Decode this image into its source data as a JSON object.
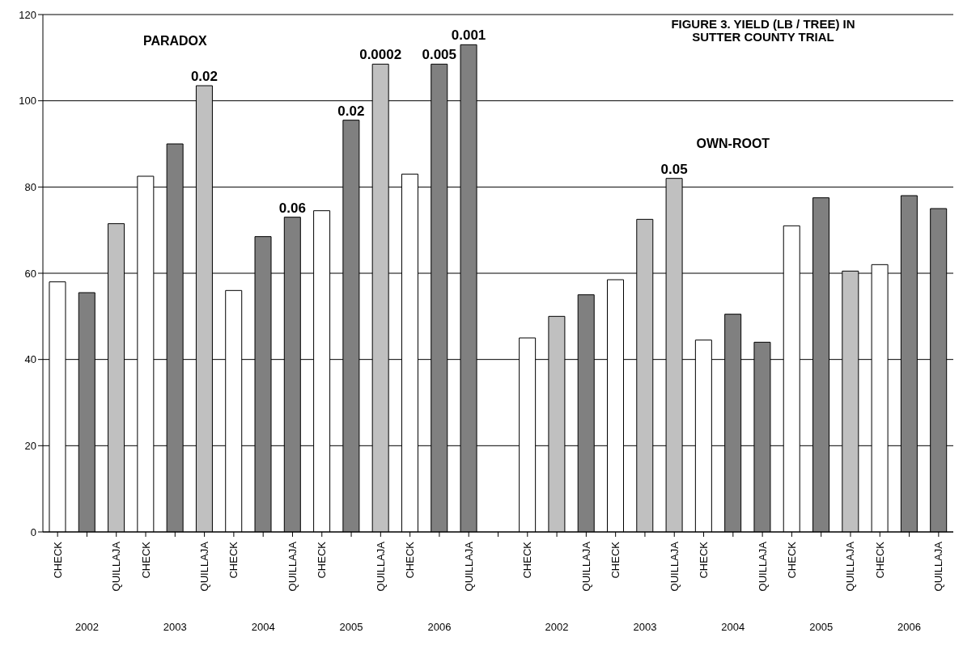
{
  "chart_data": {
    "type": "bar",
    "title": "FIGURE 3. YIELD (LB / TREE) IN SUTTER COUNTY TRIAL",
    "categories": [
      "CHECK",
      null,
      "QUILLAJA",
      "CHECK",
      null,
      "QUILLAJA",
      "CHECK",
      null,
      "QUILLAJA",
      "CHECK",
      null,
      "QUILLAJA",
      "CHECK",
      null,
      "QUILLAJA",
      null,
      "CHECK",
      null,
      "QUILLAJA",
      "CHECK",
      null,
      "QUILLAJA",
      "CHECK",
      null,
      "QUILLAJA",
      "CHECK",
      null,
      "QUILLAJA",
      "CHECK",
      null,
      "QUILLAJA"
    ],
    "values": [
      58,
      55.5,
      71.5,
      82.5,
      90,
      103.5,
      56,
      68.5,
      73,
      74.5,
      95.5,
      108.5,
      83,
      108.5,
      113,
      null,
      45,
      50,
      55,
      58.5,
      72.5,
      82,
      44.5,
      50.5,
      44,
      71,
      77.5,
      60.5,
      62,
      78,
      75
    ],
    "colors": [
      "#ffffff",
      "#808080",
      "#c0c0c0",
      "#ffffff",
      "#808080",
      "#c0c0c0",
      "#ffffff",
      "#808080",
      "#808080",
      "#ffffff",
      "#808080",
      "#c0c0c0",
      "#ffffff",
      "#808080",
      "#808080",
      "#ffffff",
      "#ffffff",
      "#c0c0c0",
      "#808080",
      "#ffffff",
      "#c0c0c0",
      "#c0c0c0",
      "#ffffff",
      "#808080",
      "#808080",
      "#ffffff",
      "#808080",
      "#c0c0c0",
      "#ffffff",
      "#808080",
      "#808080"
    ],
    "annotations": [
      "PARADOX",
      "OWN-ROOT",
      "2002",
      "2003",
      "2004",
      "2005",
      "2006",
      "2002",
      "2003",
      "2004",
      "2005",
      "2006",
      {
        "text": "0.02",
        "y": 103.5
      },
      {
        "text": "0.06",
        "y": 73
      },
      {
        "text": "0.02",
        "y": 95.5
      },
      {
        "text": "0.0002",
        "y": 108.5
      },
      {
        "text": "0.005",
        "y": 108.5
      },
      {
        "text": "0.001",
        "y": 113
      },
      {
        "text": "0.05",
        "y": 82
      }
    ],
    "ylim": [
      0,
      120
    ],
    "yticks": [
      0,
      20,
      40,
      60,
      80,
      100,
      120
    ],
    "grid": "y"
  }
}
